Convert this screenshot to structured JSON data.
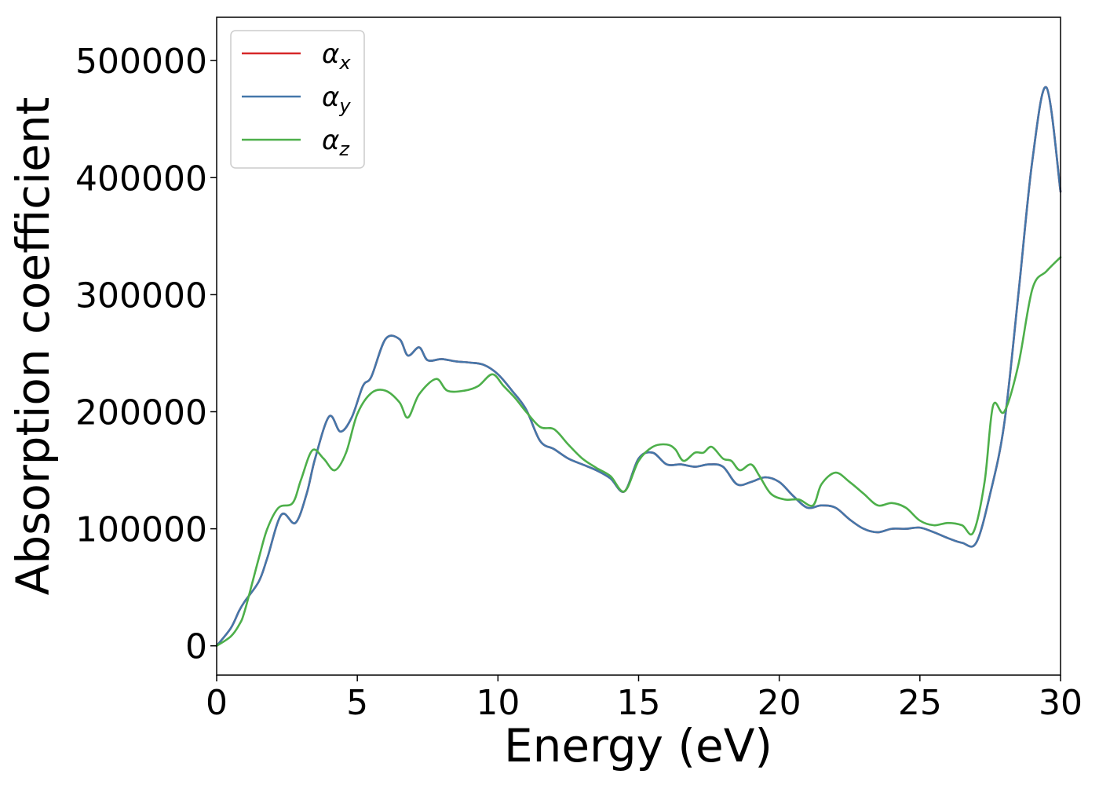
{
  "chart_data": {
    "type": "line",
    "xlabel": "Energy (eV)",
    "ylabel": "Absorption coefficient",
    "xlim": [
      0,
      30
    ],
    "ylim": [
      -25000,
      537000
    ],
    "xticks": [
      0,
      5,
      10,
      15,
      20,
      25,
      30
    ],
    "yticks": [
      0,
      100000,
      200000,
      300000,
      400000,
      500000
    ],
    "grid": false,
    "legend_position": "top-left",
    "series": [
      {
        "name": "α",
        "subscript": "x",
        "color": "#d62728",
        "x": [
          0,
          0.5,
          0.8,
          1.0,
          1.5,
          1.8,
          2.3,
          2.8,
          3.2,
          3.5,
          4.0,
          4.4,
          4.8,
          5.2,
          5.5,
          6.0,
          6.5,
          6.8,
          7.2,
          7.5,
          8.0,
          8.5,
          9.0,
          9.5,
          10.0,
          10.5,
          11.0,
          11.5,
          12.0,
          12.5,
          13.0,
          13.5,
          14.0,
          14.5,
          15.0,
          15.5,
          16.0,
          16.5,
          17.0,
          17.5,
          18.0,
          18.5,
          19.0,
          19.5,
          20.0,
          20.5,
          21.0,
          21.5,
          22.0,
          22.5,
          23.0,
          23.5,
          24.0,
          24.5,
          25.0,
          25.5,
          26.0,
          26.5,
          27.0,
          27.5,
          28.0,
          28.5,
          29.0,
          29.5,
          30.0
        ],
        "values": [
          0,
          15000,
          30000,
          38000,
          55000,
          75000,
          112000,
          105000,
          130000,
          160000,
          196000,
          183000,
          195000,
          222000,
          230000,
          262000,
          262000,
          248000,
          255000,
          244000,
          245000,
          243000,
          242000,
          240000,
          232000,
          218000,
          202000,
          175000,
          168000,
          160000,
          155000,
          150000,
          143000,
          132000,
          160000,
          165000,
          155000,
          155000,
          153000,
          155000,
          153000,
          138000,
          140000,
          144000,
          140000,
          128000,
          118000,
          120000,
          118000,
          108000,
          100000,
          97000,
          100000,
          100000,
          101000,
          97000,
          92000,
          88000,
          88000,
          130000,
          190000,
          300000,
          415000,
          477000,
          388000
        ]
      },
      {
        "name": "α",
        "subscript": "y",
        "color": "#4477aa",
        "x": [
          0,
          0.5,
          0.8,
          1.0,
          1.5,
          1.8,
          2.3,
          2.8,
          3.2,
          3.5,
          4.0,
          4.4,
          4.8,
          5.2,
          5.5,
          6.0,
          6.5,
          6.8,
          7.2,
          7.5,
          8.0,
          8.5,
          9.0,
          9.5,
          10.0,
          10.5,
          11.0,
          11.5,
          12.0,
          12.5,
          13.0,
          13.5,
          14.0,
          14.5,
          15.0,
          15.5,
          16.0,
          16.5,
          17.0,
          17.5,
          18.0,
          18.5,
          19.0,
          19.5,
          20.0,
          20.5,
          21.0,
          21.5,
          22.0,
          22.5,
          23.0,
          23.5,
          24.0,
          24.5,
          25.0,
          25.5,
          26.0,
          26.5,
          27.0,
          27.5,
          28.0,
          28.5,
          29.0,
          29.5,
          30.0
        ],
        "values": [
          0,
          15000,
          30000,
          38000,
          55000,
          75000,
          112000,
          105000,
          130000,
          160000,
          196000,
          183000,
          195000,
          222000,
          230000,
          262000,
          262000,
          248000,
          255000,
          244000,
          245000,
          243000,
          242000,
          240000,
          232000,
          218000,
          202000,
          175000,
          168000,
          160000,
          155000,
          150000,
          143000,
          132000,
          160000,
          165000,
          155000,
          155000,
          153000,
          155000,
          153000,
          138000,
          140000,
          144000,
          140000,
          128000,
          118000,
          120000,
          118000,
          108000,
          100000,
          97000,
          100000,
          100000,
          101000,
          97000,
          92000,
          88000,
          88000,
          130000,
          190000,
          300000,
          415000,
          477000,
          388000
        ]
      },
      {
        "name": "α",
        "subscript": "z",
        "color": "#4daf4a",
        "x": [
          0,
          0.5,
          0.8,
          1.0,
          1.5,
          1.8,
          2.2,
          2.7,
          3.0,
          3.4,
          3.8,
          4.2,
          4.6,
          5.0,
          5.5,
          6.0,
          6.5,
          6.8,
          7.2,
          7.8,
          8.2,
          8.8,
          9.3,
          9.8,
          10.2,
          10.6,
          11.0,
          11.5,
          12.0,
          12.5,
          13.0,
          13.5,
          14.0,
          14.5,
          15.0,
          15.5,
          16.0,
          16.3,
          16.6,
          17.0,
          17.3,
          17.6,
          18.0,
          18.3,
          18.6,
          19.0,
          19.3,
          19.7,
          20.2,
          20.7,
          21.2,
          21.5,
          22.0,
          22.5,
          23.0,
          23.5,
          24.0,
          24.5,
          25.0,
          25.5,
          26.0,
          26.5,
          26.9,
          27.3,
          27.6,
          28.0,
          28.5,
          29.0,
          29.5,
          30.0
        ],
        "values": [
          0,
          8000,
          18000,
          30000,
          75000,
          100000,
          118000,
          122000,
          142000,
          167000,
          160000,
          150000,
          165000,
          198000,
          216000,
          218000,
          208000,
          195000,
          215000,
          228000,
          218000,
          218000,
          222000,
          232000,
          222000,
          212000,
          200000,
          187000,
          185000,
          172000,
          160000,
          152000,
          145000,
          132000,
          158000,
          170000,
          172000,
          168000,
          158000,
          165000,
          165000,
          170000,
          160000,
          158000,
          150000,
          155000,
          145000,
          130000,
          125000,
          125000,
          120000,
          138000,
          148000,
          140000,
          130000,
          120000,
          122000,
          118000,
          107000,
          103000,
          105000,
          103000,
          97000,
          140000,
          205000,
          200000,
          240000,
          305000,
          320000,
          332000
        ]
      }
    ]
  }
}
